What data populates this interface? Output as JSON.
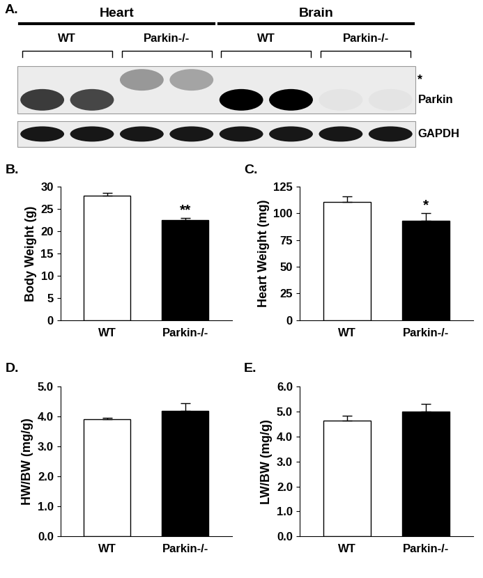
{
  "figure_label": "A.",
  "blot": {
    "groups": [
      {
        "label": "Heart",
        "subgroups": [
          {
            "label": "WT",
            "lanes": 2
          },
          {
            "label": "Parkin-/-",
            "lanes": 2
          }
        ]
      },
      {
        "label": "Brain",
        "subgroups": [
          {
            "label": "WT",
            "lanes": 2
          },
          {
            "label": "Parkin-/-",
            "lanes": 2
          }
        ]
      }
    ],
    "blots": [
      {
        "bands": [
          {
            "label": "*",
            "intensities": [
              0,
              0,
              0.35,
              0.3,
              0,
              0,
              0,
              0
            ]
          },
          {
            "label": "Parkin",
            "intensities": [
              0.75,
              0.7,
              0,
              0,
              1.0,
              1.0,
              0.03,
              0.03
            ]
          }
        ]
      },
      {
        "bands": [
          {
            "label": "GAPDH",
            "intensities": [
              0.9,
              0.9,
              0.9,
              0.9,
              0.9,
              0.9,
              0.9,
              0.9
            ]
          }
        ]
      }
    ]
  },
  "chart_data": [
    {
      "type": "bar",
      "title": "B.",
      "y_label": "Body Weight (g)",
      "categories": [
        "WT",
        "Parkin-/-"
      ],
      "values": [
        28.0,
        22.5
      ],
      "errors": [
        0.6,
        0.5
      ],
      "colors": [
        "#ffffff",
        "#000000"
      ],
      "ylim": [
        0,
        30
      ],
      "yticks": [
        0,
        5,
        10,
        15,
        20,
        25,
        30
      ],
      "annotations": [
        {
          "text": "**",
          "category": "Parkin-/-"
        }
      ]
    },
    {
      "type": "bar",
      "title": "C.",
      "y_label": "Heart Weight (mg)",
      "categories": [
        "WT",
        "Parkin-/-"
      ],
      "values": [
        111,
        93
      ],
      "errors": [
        5,
        7
      ],
      "colors": [
        "#ffffff",
        "#000000"
      ],
      "ylim": [
        0,
        125
      ],
      "yticks": [
        0,
        25,
        50,
        75,
        100,
        125
      ],
      "annotations": [
        {
          "text": "*",
          "category": "Parkin-/-"
        }
      ]
    },
    {
      "type": "bar",
      "title": "D.",
      "y_label": "HW/BW (mg/g)",
      "categories": [
        "WT",
        "Parkin-/-"
      ],
      "values": [
        3.92,
        4.2
      ],
      "errors": [
        0.05,
        0.25
      ],
      "colors": [
        "#ffffff",
        "#000000"
      ],
      "ylim": [
        0,
        5
      ],
      "yticks": [
        {
          "value": 0,
          "label": "0.0"
        },
        {
          "value": 1,
          "label": "1.0"
        },
        {
          "value": 2,
          "label": "2.0"
        },
        {
          "value": 3,
          "label": "3.0"
        },
        {
          "value": 4,
          "label": "4.0"
        },
        {
          "value": 5,
          "label": "5.0"
        }
      ]
    },
    {
      "type": "bar",
      "title": "E.",
      "y_label": "LW/BW (mg/g)",
      "categories": [
        "WT",
        "Parkin-/-"
      ],
      "values": [
        4.65,
        5.0
      ],
      "errors": [
        0.18,
        0.3
      ],
      "colors": [
        "#ffffff",
        "#000000"
      ],
      "ylim": [
        0,
        6
      ],
      "yticks": [
        {
          "value": 0,
          "label": "0.0"
        },
        {
          "value": 1,
          "label": "1.0"
        },
        {
          "value": 2,
          "label": "2.0"
        },
        {
          "value": 3,
          "label": "3.0"
        },
        {
          "value": 4,
          "label": "4.0"
        },
        {
          "value": 5,
          "label": "5.0"
        },
        {
          "value": 6,
          "label": "6.0"
        }
      ]
    }
  ]
}
